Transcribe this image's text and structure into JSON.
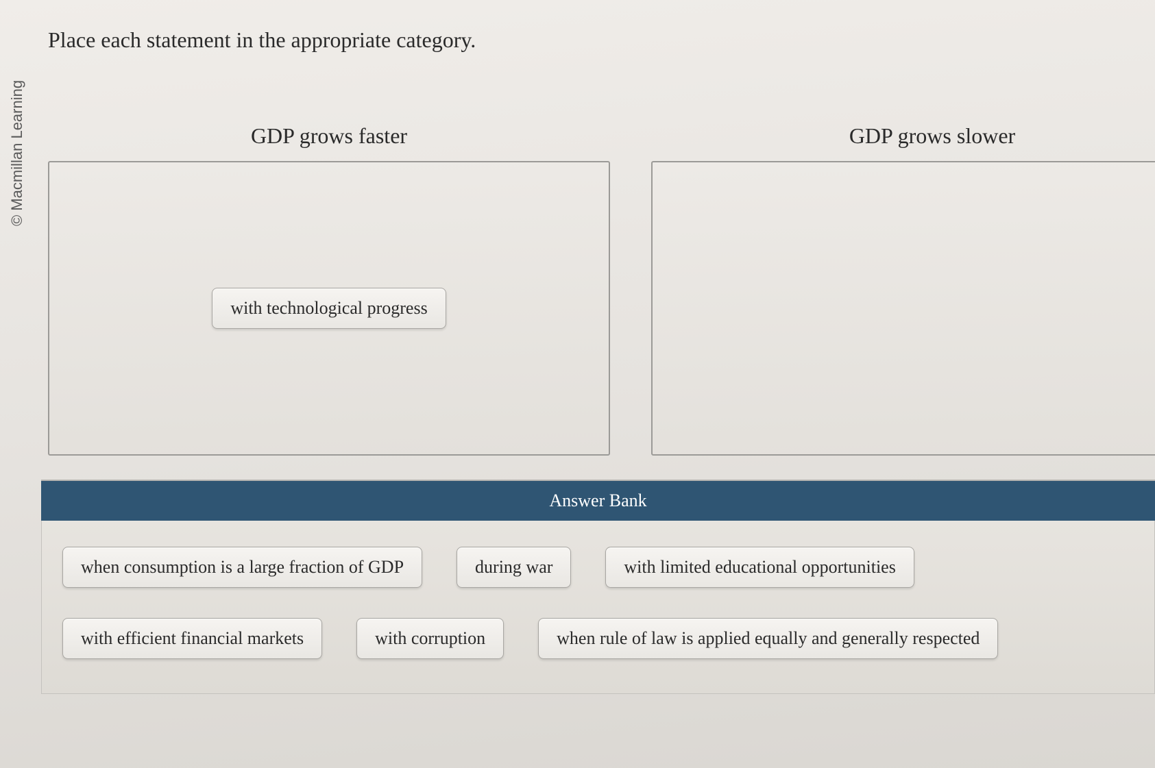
{
  "copyright": "© Macmillan Learning",
  "instruction": "Place each statement in the appropriate category.",
  "categories": [
    {
      "title": "GDP grows faster",
      "placed": [
        "with technological progress"
      ]
    },
    {
      "title": "GDP grows slower",
      "placed": []
    }
  ],
  "answer_bank": {
    "header": "Answer Bank",
    "rows": [
      [
        "when consumption is a large fraction of GDP",
        "during war",
        "with limited educational opportunities"
      ],
      [
        "with efficient financial markets",
        "with corruption",
        "when rule of law is applied equally and generally respected"
      ]
    ]
  },
  "colors": {
    "bank_header_bg": "#2f5573",
    "bank_header_text": "#ffffff",
    "chip_border": "#a8a6a2",
    "dropzone_border": "#9b9a97",
    "text": "#2a2a2a"
  }
}
